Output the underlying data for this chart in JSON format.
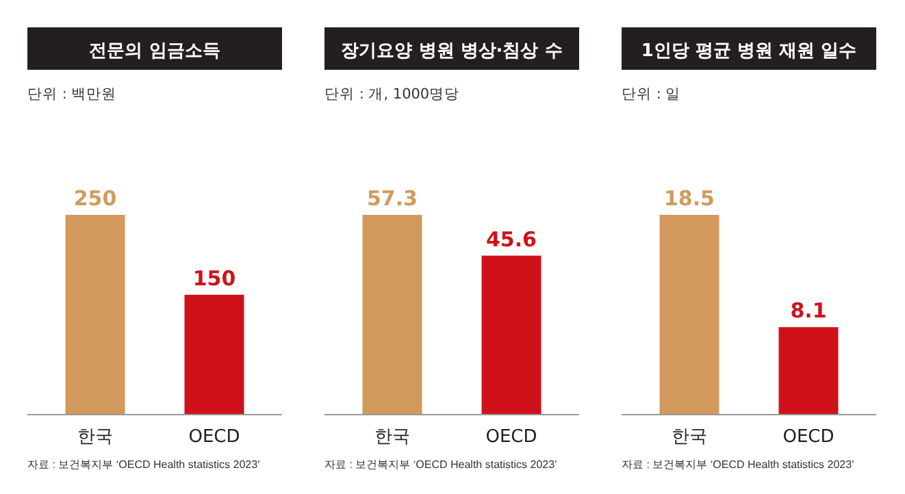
{
  "chart_data": [
    {
      "type": "bar",
      "title": "전문의 임금소득",
      "subtitle": "단위 : 백만원",
      "categories": [
        "한국",
        "OECD"
      ],
      "values": [
        250,
        150
      ],
      "colors": [
        "#d19a5c",
        "#cf1219"
      ],
      "data_labels": true,
      "annotations": [
        "자료 : 보건복지부 ‘OECD Health statistics 2023’"
      ]
    },
    {
      "type": "bar",
      "title": "장기요양 병원 병상·침상 수",
      "subtitle": "단위 : 개, 1000명당",
      "categories": [
        "한국",
        "OECD"
      ],
      "values": [
        57.3,
        45.6
      ],
      "colors": [
        "#d19a5c",
        "#cf1219"
      ],
      "data_labels": true,
      "annotations": [
        "자료 : 보건복지부 ‘OECD Health statistics 2023’"
      ]
    },
    {
      "type": "bar",
      "title": "1인당 평균 병원 재원 일수",
      "subtitle": "단위 : 일",
      "categories": [
        "한국",
        "OECD"
      ],
      "values": [
        18.5,
        8.1
      ],
      "colors": [
        "#d19a5c",
        "#cf1219"
      ],
      "data_labels": true,
      "annotations": [
        "자료 : 보건복지부 ‘OECD Health statistics 2023’"
      ]
    }
  ]
}
